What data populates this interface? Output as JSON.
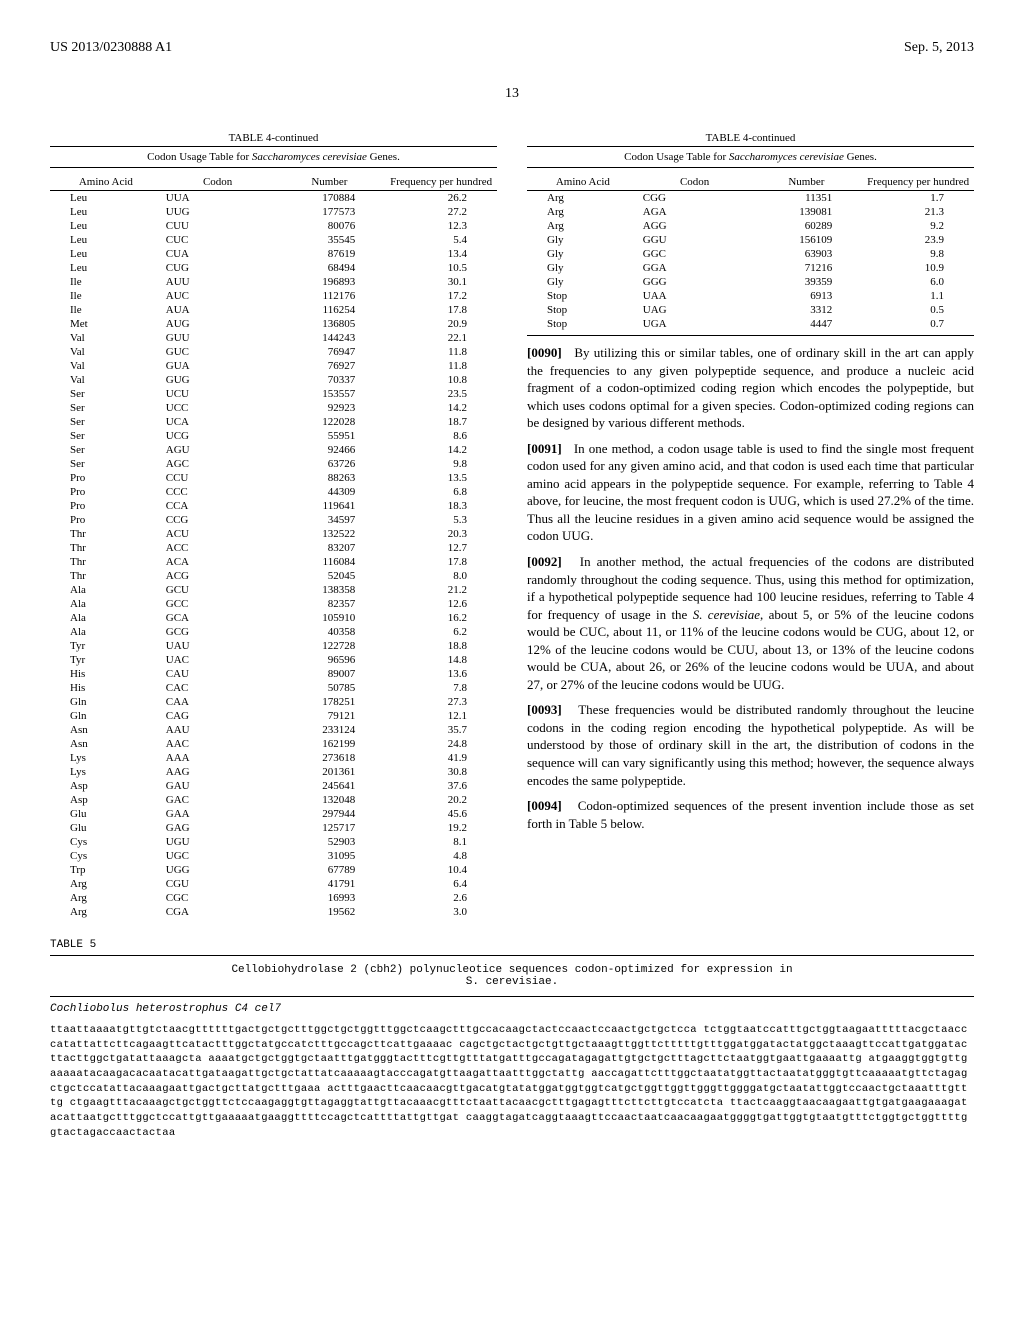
{
  "header": {
    "pub_number": "US 2013/0230888 A1",
    "pub_date": "Sep. 5, 2013",
    "page": "13"
  },
  "table4_left": {
    "title": "TABLE 4-continued",
    "subtitle_prefix": "Codon Usage Table for ",
    "subtitle_species": "Saccharomyces cerevisiae",
    "subtitle_suffix": " Genes.",
    "headers": [
      "Amino Acid",
      "Codon",
      "Number",
      "Frequency per hundred"
    ],
    "rows": [
      [
        "Leu",
        "UUA",
        "170884",
        "26.2"
      ],
      [
        "Leu",
        "UUG",
        "177573",
        "27.2"
      ],
      [
        "Leu",
        "CUU",
        "80076",
        "12.3"
      ],
      [
        "Leu",
        "CUC",
        "35545",
        "5.4"
      ],
      [
        "Leu",
        "CUA",
        "87619",
        "13.4"
      ],
      [
        "Leu",
        "CUG",
        "68494",
        "10.5"
      ],
      [
        "Ile",
        "AUU",
        "196893",
        "30.1"
      ],
      [
        "Ile",
        "AUC",
        "112176",
        "17.2"
      ],
      [
        "Ile",
        "AUA",
        "116254",
        "17.8"
      ],
      [
        "Met",
        "AUG",
        "136805",
        "20.9"
      ],
      [
        "Val",
        "GUU",
        "144243",
        "22.1"
      ],
      [
        "Val",
        "GUC",
        "76947",
        "11.8"
      ],
      [
        "Val",
        "GUA",
        "76927",
        "11.8"
      ],
      [
        "Val",
        "GUG",
        "70337",
        "10.8"
      ],
      [
        "Ser",
        "UCU",
        "153557",
        "23.5"
      ],
      [
        "Ser",
        "UCC",
        "92923",
        "14.2"
      ],
      [
        "Ser",
        "UCA",
        "122028",
        "18.7"
      ],
      [
        "Ser",
        "UCG",
        "55951",
        "8.6"
      ],
      [
        "Ser",
        "AGU",
        "92466",
        "14.2"
      ],
      [
        "Ser",
        "AGC",
        "63726",
        "9.8"
      ],
      [
        "Pro",
        "CCU",
        "88263",
        "13.5"
      ],
      [
        "Pro",
        "CCC",
        "44309",
        "6.8"
      ],
      [
        "Pro",
        "CCA",
        "119641",
        "18.3"
      ],
      [
        "Pro",
        "CCG",
        "34597",
        "5.3"
      ],
      [
        "Thr",
        "ACU",
        "132522",
        "20.3"
      ],
      [
        "Thr",
        "ACC",
        "83207",
        "12.7"
      ],
      [
        "Thr",
        "ACA",
        "116084",
        "17.8"
      ],
      [
        "Thr",
        "ACG",
        "52045",
        "8.0"
      ],
      [
        "Ala",
        "GCU",
        "138358",
        "21.2"
      ],
      [
        "Ala",
        "GCC",
        "82357",
        "12.6"
      ],
      [
        "Ala",
        "GCA",
        "105910",
        "16.2"
      ],
      [
        "Ala",
        "GCG",
        "40358",
        "6.2"
      ],
      [
        "Tyr",
        "UAU",
        "122728",
        "18.8"
      ],
      [
        "Tyr",
        "UAC",
        "96596",
        "14.8"
      ],
      [
        "His",
        "CAU",
        "89007",
        "13.6"
      ],
      [
        "His",
        "CAC",
        "50785",
        "7.8"
      ],
      [
        "Gln",
        "CAA",
        "178251",
        "27.3"
      ],
      [
        "Gln",
        "CAG",
        "79121",
        "12.1"
      ],
      [
        "Asn",
        "AAU",
        "233124",
        "35.7"
      ],
      [
        "Asn",
        "AAC",
        "162199",
        "24.8"
      ],
      [
        "Lys",
        "AAA",
        "273618",
        "41.9"
      ],
      [
        "Lys",
        "AAG",
        "201361",
        "30.8"
      ],
      [
        "Asp",
        "GAU",
        "245641",
        "37.6"
      ],
      [
        "Asp",
        "GAC",
        "132048",
        "20.2"
      ],
      [
        "Glu",
        "GAA",
        "297944",
        "45.6"
      ],
      [
        "Glu",
        "GAG",
        "125717",
        "19.2"
      ],
      [
        "Cys",
        "UGU",
        "52903",
        "8.1"
      ],
      [
        "Cys",
        "UGC",
        "31095",
        "4.8"
      ],
      [
        "Trp",
        "UGG",
        "67789",
        "10.4"
      ],
      [
        "Arg",
        "CGU",
        "41791",
        "6.4"
      ],
      [
        "Arg",
        "CGC",
        "16993",
        "2.6"
      ],
      [
        "Arg",
        "CGA",
        "19562",
        "3.0"
      ]
    ]
  },
  "table4_right": {
    "title": "TABLE 4-continued",
    "subtitle_prefix": "Codon Usage Table for ",
    "subtitle_species": "Saccharomyces cerevisiae",
    "subtitle_suffix": " Genes.",
    "headers": [
      "Amino Acid",
      "Codon",
      "Number",
      "Frequency per hundred"
    ],
    "rows": [
      [
        "Arg",
        "CGG",
        "11351",
        "1.7"
      ],
      [
        "Arg",
        "AGA",
        "139081",
        "21.3"
      ],
      [
        "Arg",
        "AGG",
        "60289",
        "9.2"
      ],
      [
        "Gly",
        "GGU",
        "156109",
        "23.9"
      ],
      [
        "Gly",
        "GGC",
        "63903",
        "9.8"
      ],
      [
        "Gly",
        "GGA",
        "71216",
        "10.9"
      ],
      [
        "Gly",
        "GGG",
        "39359",
        "6.0"
      ],
      [
        "Stop",
        "UAA",
        "6913",
        "1.1"
      ],
      [
        "Stop",
        "UAG",
        "3312",
        "0.5"
      ],
      [
        "Stop",
        "UGA",
        "4447",
        "0.7"
      ]
    ]
  },
  "paragraphs": [
    {
      "num": "[0090]",
      "text": "By utilizing this or similar tables, one of ordinary skill in the art can apply the frequencies to any given polypeptide sequence, and produce a nucleic acid fragment of a codon-optimized coding region which encodes the polypeptide, but which uses codons optimal for a given species. Codon-optimized coding regions can be designed by various different methods."
    },
    {
      "num": "[0091]",
      "text": "In one method, a codon usage table is used to find the single most frequent codon used for any given amino acid, and that codon is used each time that particular amino acid appears in the polypeptide sequence. For example, referring to Table 4 above, for leucine, the most frequent codon is UUG, which is used 27.2% of the time. Thus all the leucine residues in a given amino acid sequence would be assigned the codon UUG."
    },
    {
      "num": "[0092]",
      "text": "In another method, the actual frequencies of the codons are distributed randomly throughout the coding sequence. Thus, using this method for optimization, if a hypothetical polypeptide sequence had 100 leucine residues, referring to Table 4 for frequency of usage in the S. cerevisiae, about 5, or 5% of the leucine codons would be CUC, about 11, or 11% of the leucine codons would be CUG, about 12, or 12% of the leucine codons would be CUU, about 13, or 13% of the leucine codons would be CUA, about 26, or 26% of the leucine codons would be UUA, and about 27, or 27% of the leucine codons would be UUG."
    },
    {
      "num": "[0093]",
      "text": "These frequencies would be distributed randomly throughout the leucine codons in the coding region encoding the hypothetical polypeptide. As will be understood by those of ordinary skill in the art, the distribution of codons in the sequence will can vary significantly using this method; however, the sequence always encodes the same polypeptide."
    },
    {
      "num": "[0094]",
      "text": "Codon-optimized sequences of the present invention include those as set forth in Table 5 below."
    }
  ],
  "table5": {
    "title": "TABLE 5",
    "caption": "Cellobiohydrolase 2 (cbh2) polynucleotice sequences codon-optimized for expression in\nS. cerevisiae.",
    "species": "Cochliobolus heterostrophus C4 cel7",
    "sequence": "ttaattaaaatgttgtctaacgttttttgactgctgctttggctgctggtttggctcaagctttgccacaagctactccaactccaactgctgctcca tctggtaatccatttgctggtaagaatttttacgctaacccatattattcttcagaagttcatactttggctatgccatctttgccagcttcattgaaaac cagctgctactgctgttgctaaagttggttctttttgtttggatggatactatggctaaagttccattgatggatacttacttggctgatattaaagcta aaaatgctgctggtgctaatttgatgggtactttcgttgtttatgatttgccagatagagattgtgctgctttagcttctaatggtgaattgaaaattg atgaaggtggtgttgaaaaatacaagacacaatacattgataagattgctgctattatcaaaaagtacccagatgttaagattaatttggctattg aaccagattctttggctaatatggttactaatatgggtgttcaaaaatgttctagagctgctccatattacaaagaattgactgcttatgctttgaaa actttgaacttcaacaacgttgacatgtatatggatggtggtcatgctggttggttgggttggggatgctaatattggtccaactgctaaatttgtttg ctgaagtttacaaagctgctggttctccaagaggtgttagaggtattgttacaaacgtttctaattacaacgctttgagagtttcttcttgtccatcta ttactcaaggtaacaagaattgtgatgaagaaagatacattaatgctttggctccattgttgaaaaatgaaggttttccagctcattttattgttgat caaggtagatcaggtaaagttccaactaatcaacaagaatggggtgattggtgtaatgtttctggtgctggttttggtactagaccaactactaa"
  }
}
